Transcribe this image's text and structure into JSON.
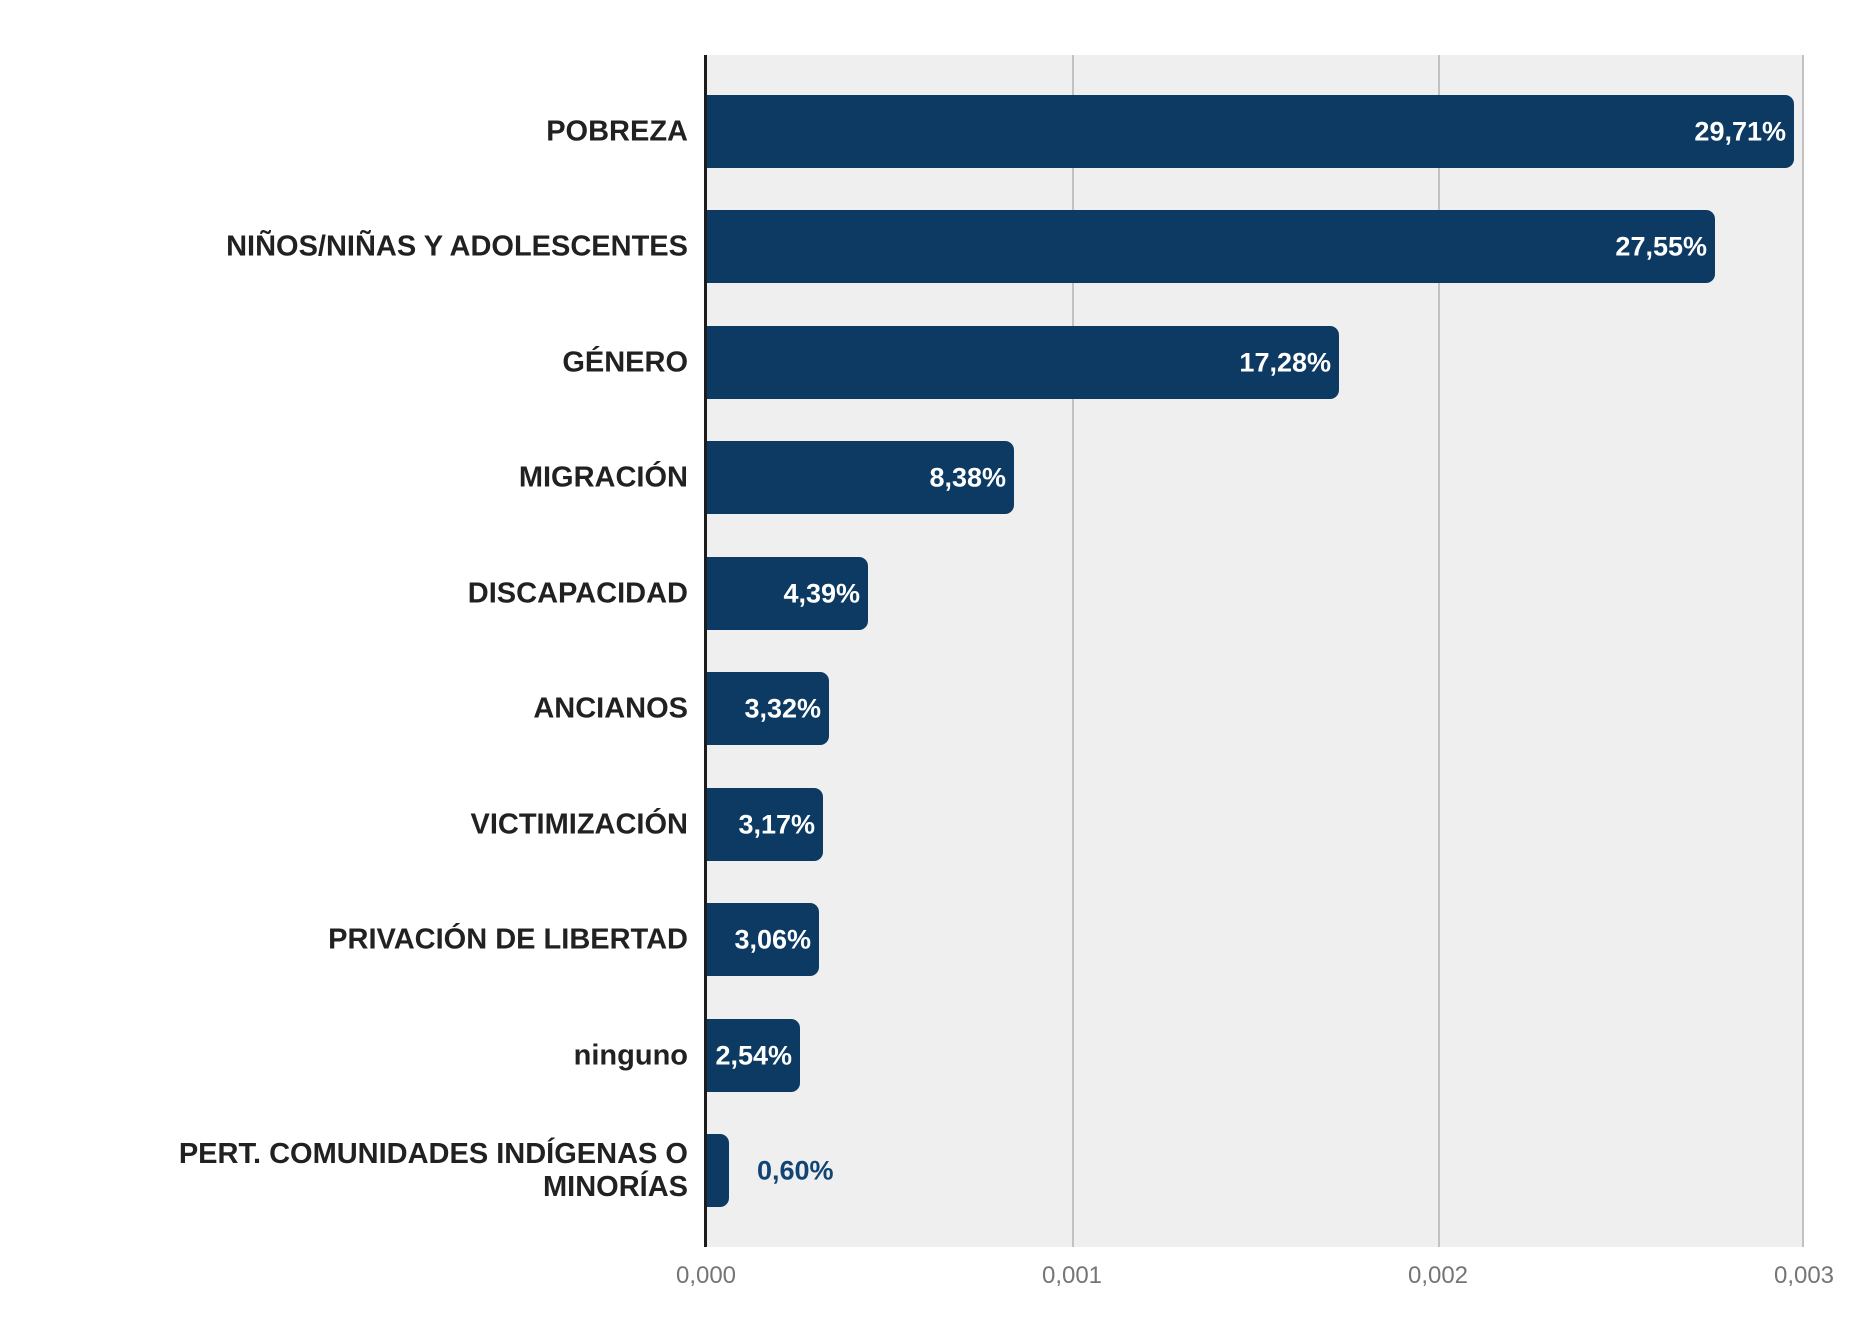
{
  "chart_data": {
    "type": "bar",
    "orientation": "horizontal",
    "title": "",
    "xlabel": "",
    "ylabel": "",
    "xlim": [
      0,
      0.003
    ],
    "x_ticks": [
      "0,000",
      "0,001",
      "0,002",
      "0,003"
    ],
    "grid": true,
    "legend": "none",
    "categories": [
      "POBREZA",
      "NIÑOS/NIÑAS Y ADOLESCENTES",
      "GÉNERO",
      "MIGRACIÓN",
      "DISCAPACIDAD",
      "ANCIANOS",
      "VICTIMIZACIÓN",
      "PRIVACIÓN DE LIBERTAD",
      "ninguno",
      "PERT. COMUNIDADES INDÍGENAS O\nMINORÍAS"
    ],
    "slugs": [
      "pobreza",
      "ninos-ninas-y-adolescentes",
      "genero",
      "migracion",
      "discapacidad",
      "ancianos",
      "victimizacion",
      "privacion-de-libertad",
      "ninguno",
      "pert-comunidades-indigenas-o-minorias"
    ],
    "values": [
      0.002971,
      0.002755,
      0.001728,
      0.000838,
      0.000439,
      0.000332,
      0.000317,
      0.000306,
      0.000254,
      6e-05
    ],
    "value_labels": [
      "29,71%",
      "27,55%",
      "17,28%",
      "8,38%",
      "4,39%",
      "3,32%",
      "3,17%",
      "3,06%",
      "2,54%",
      "0,60%"
    ]
  },
  "colors": {
    "bar": "#0c3a63",
    "plot_background": "#efefef",
    "gridline": "#c2c2c2",
    "axis_line": "#1c1c1c",
    "category_text": "#212121",
    "tick_text": "#757575",
    "value_inside_text": "#ffffff",
    "value_outside_text": "#0f4473"
  }
}
